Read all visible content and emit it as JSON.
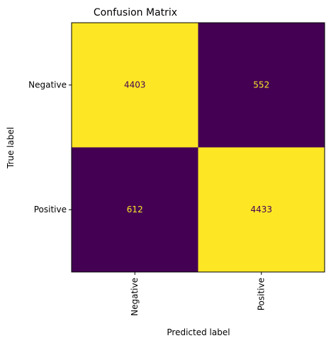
{
  "chart_data": {
    "type": "heatmap",
    "title": "Confusion Matrix",
    "xlabel": "Predicted label",
    "ylabel": "True label",
    "x_categories": [
      "Negative",
      "Positive"
    ],
    "y_categories": [
      "Negative",
      "Positive"
    ],
    "matrix": [
      [
        4403,
        552
      ],
      [
        612,
        4433
      ]
    ],
    "colormap": "viridis",
    "colors": {
      "high": "#fde725",
      "low": "#440154",
      "text_on_high": "#440154",
      "text_on_low": "#fde725"
    },
    "grid": false,
    "colorbar": false
  }
}
